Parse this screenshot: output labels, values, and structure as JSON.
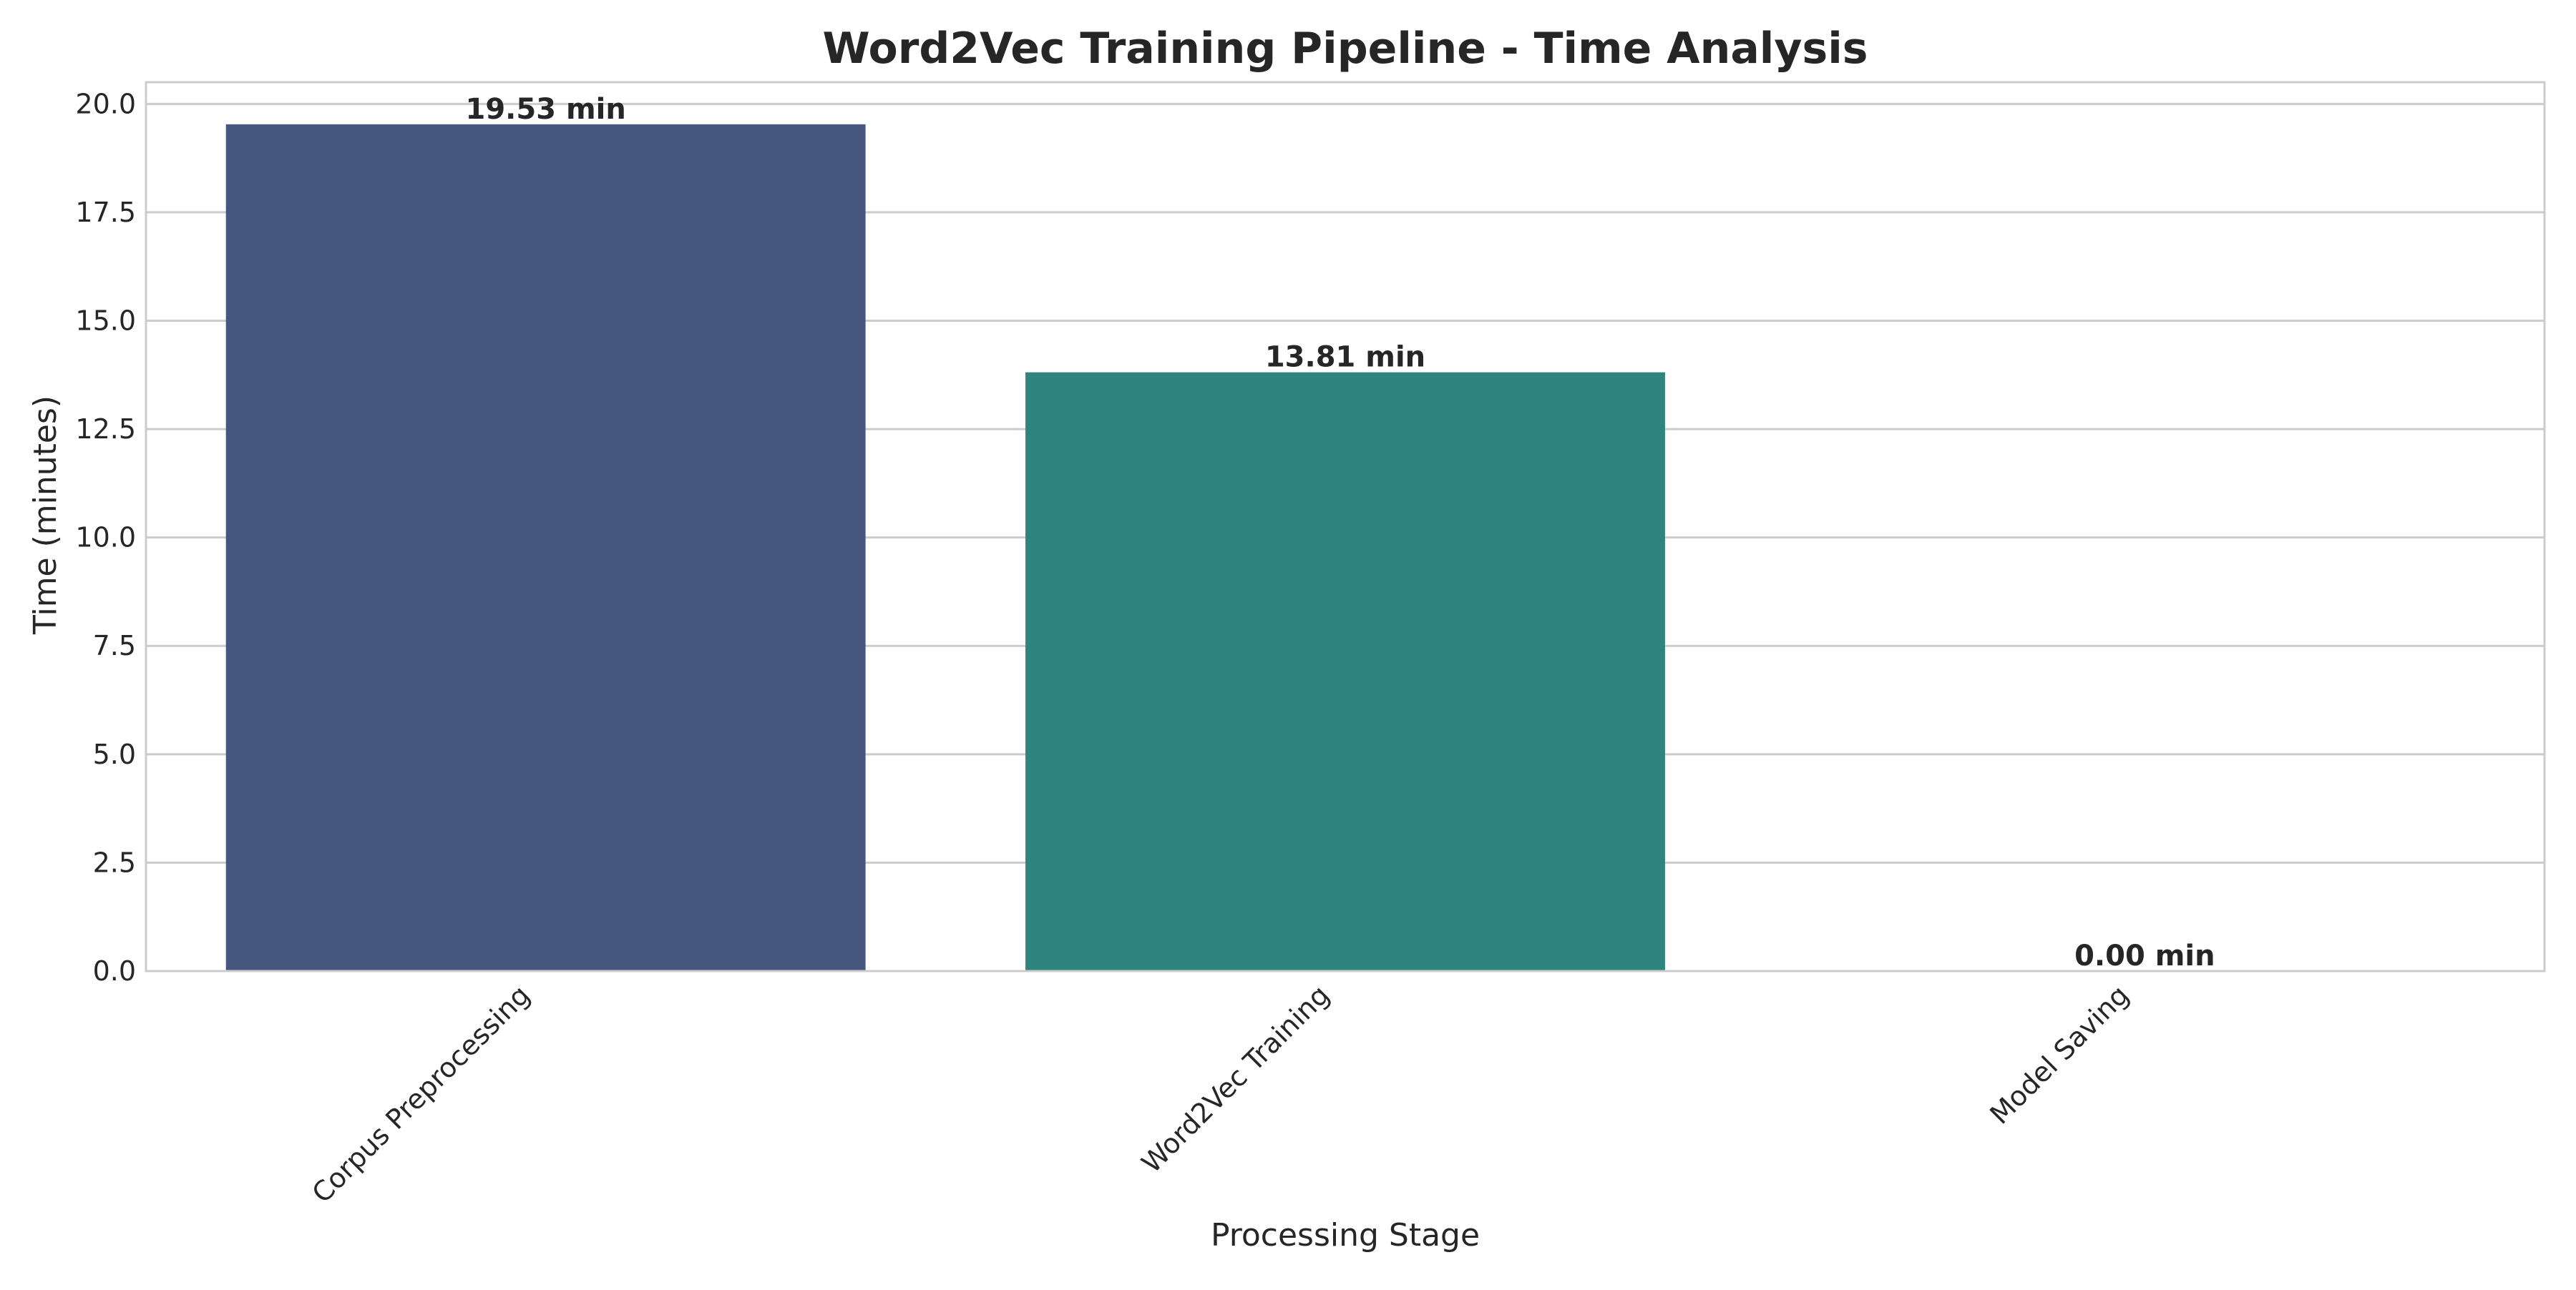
{
  "chart_data": {
    "type": "bar",
    "title": "Word2Vec Training Pipeline - Time Analysis",
    "xlabel": "Processing Stage",
    "ylabel": "Time (minutes)",
    "categories": [
      "Corpus Preprocessing",
      "Word2Vec Training",
      "Model Saving"
    ],
    "values": [
      19.53,
      13.81,
      0.0
    ],
    "value_labels": [
      "19.53 min",
      "13.81 min",
      "0.00 min"
    ],
    "colors": [
      "#46577f",
      "#2f847f",
      "#5bbf70"
    ],
    "ylim": [
      0,
      20.5
    ],
    "yticks": [
      0,
      2.5,
      5,
      7.5,
      10,
      12.5,
      15,
      17.5,
      20
    ],
    "ytick_labels": [
      "0.0",
      "2.5",
      "5.0",
      "7.5",
      "10.0",
      "12.5",
      "15.0",
      "17.5",
      "20.0"
    ],
    "grid": "horizontal",
    "legend": "none"
  }
}
